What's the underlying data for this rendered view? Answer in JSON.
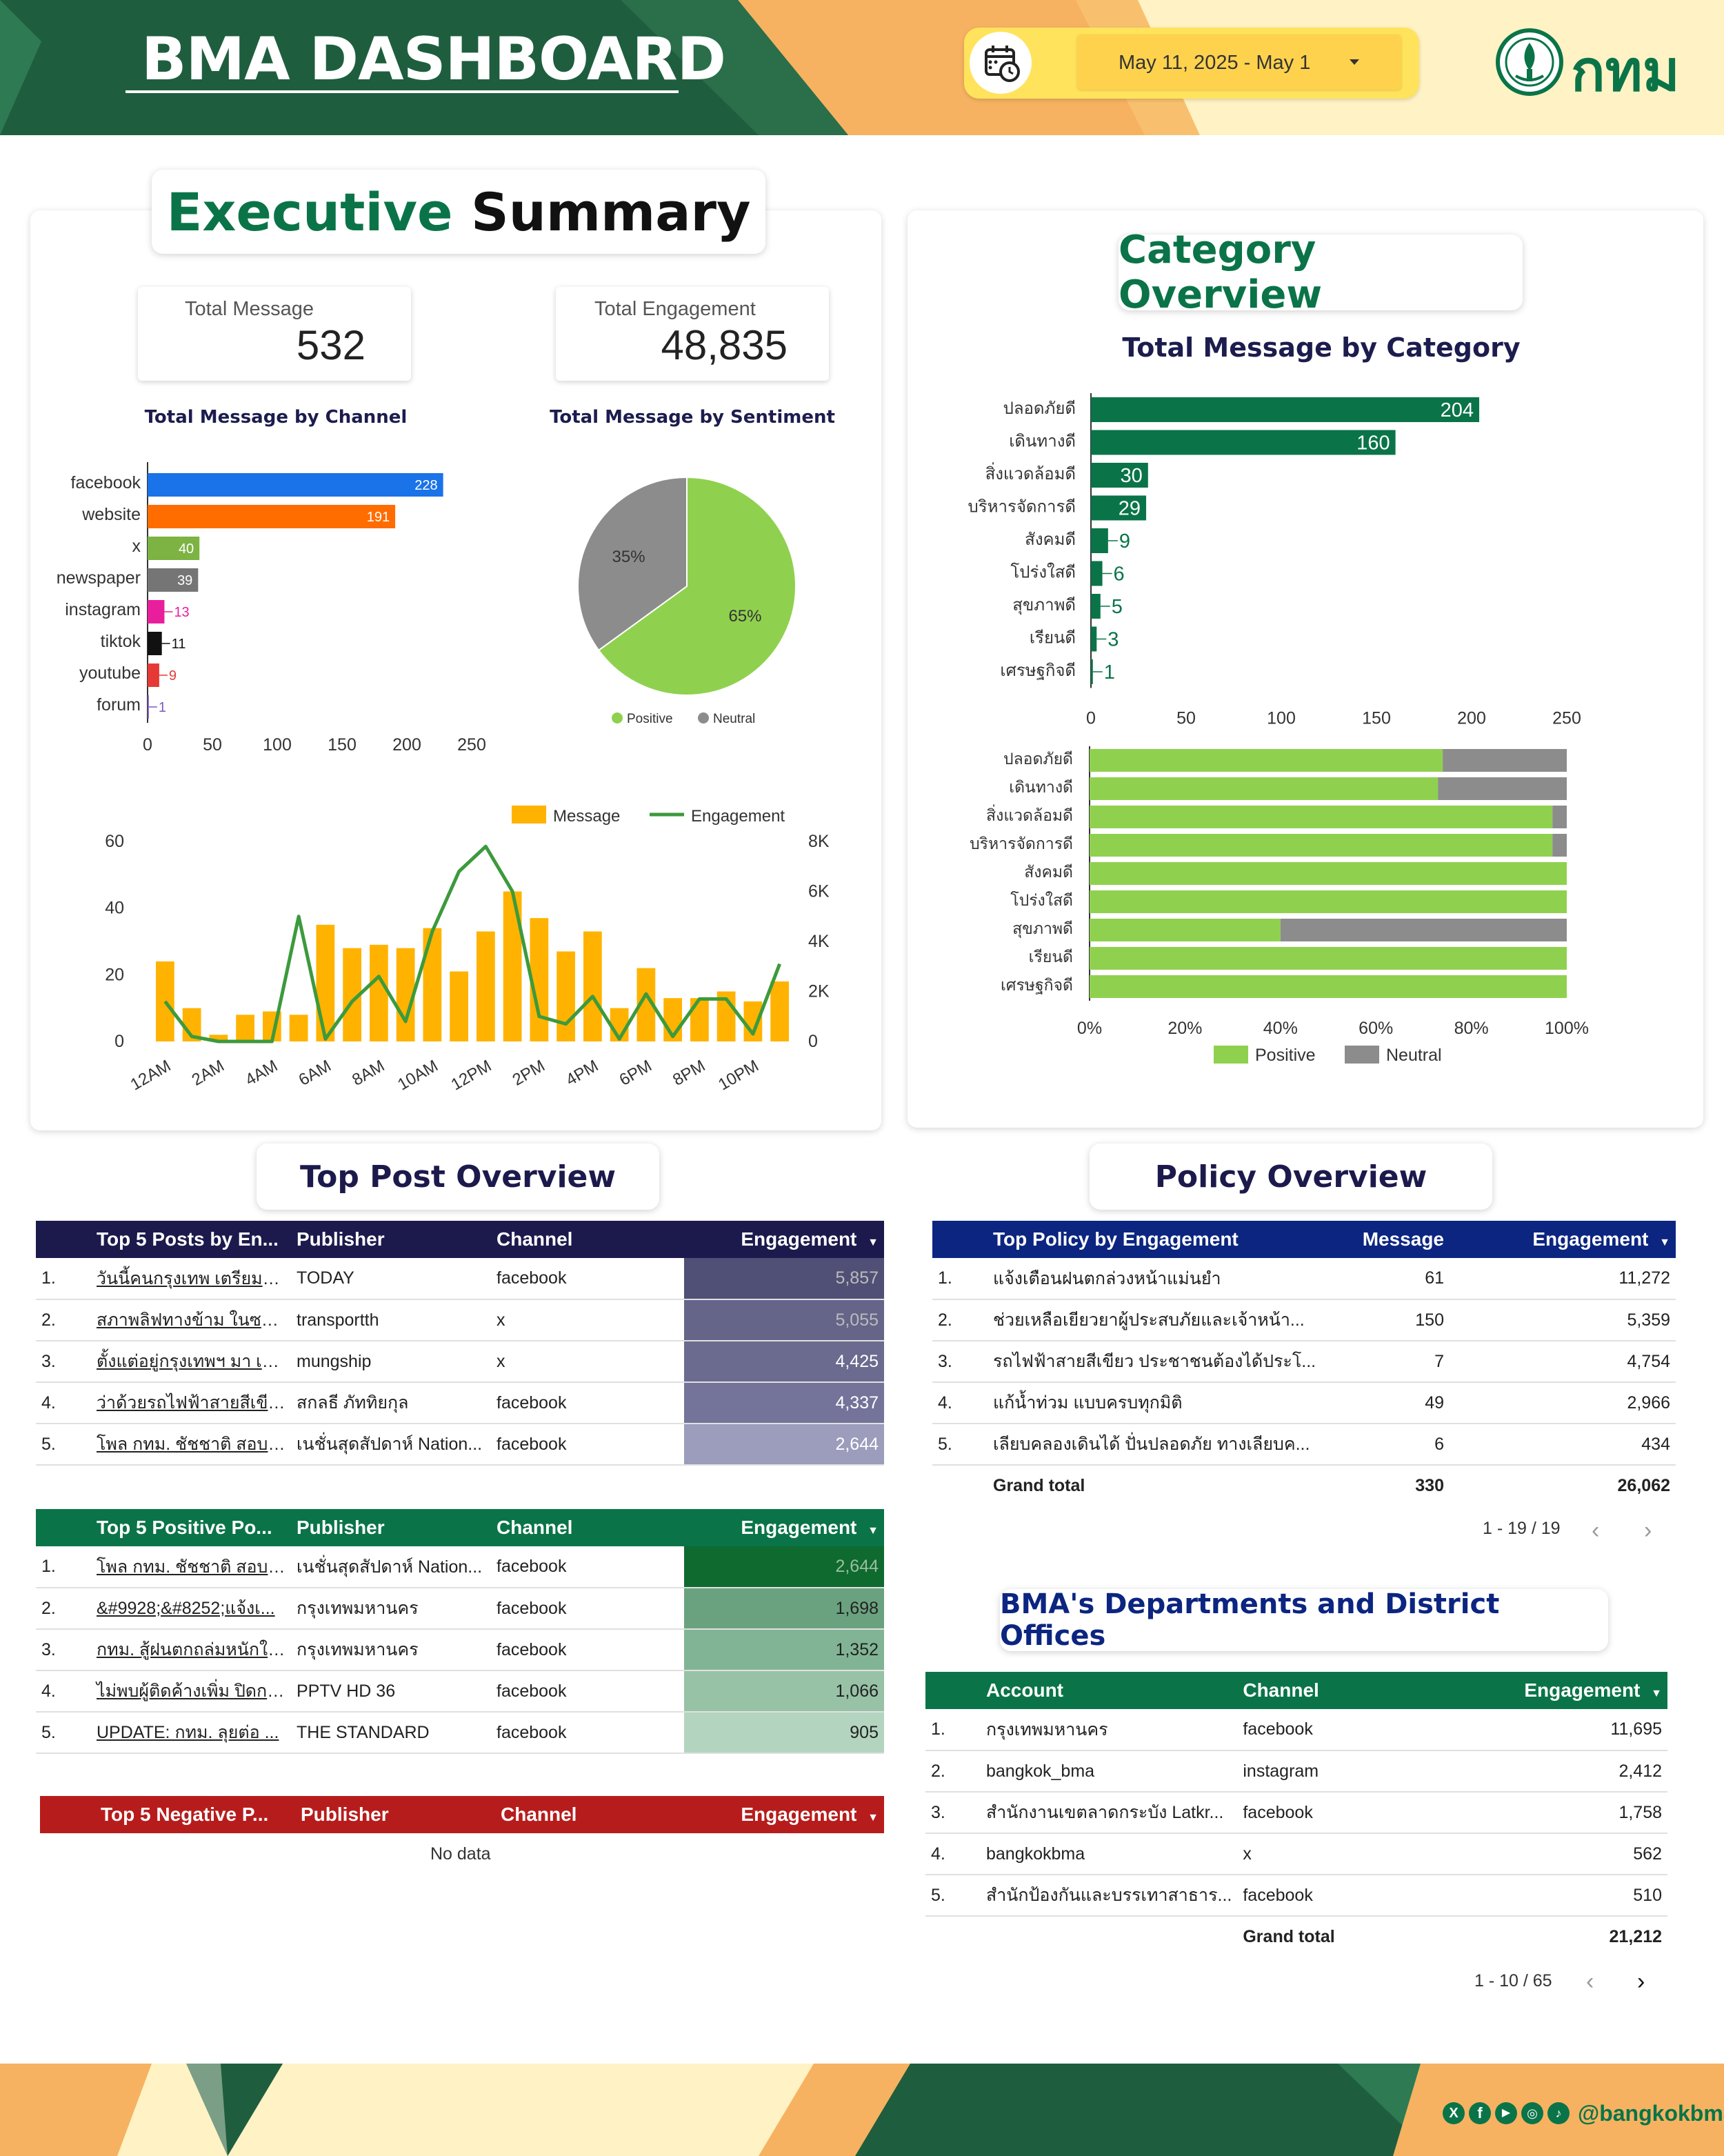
{
  "header": {
    "title": "BMA DASHBOARD",
    "date_range": "May 11, 2025 - May 1",
    "logo_text": "กทม",
    "calendar_icon": "calendar-clock-icon",
    "dropdown_icon": "caret-down-icon"
  },
  "executive": {
    "title_green": "Executive",
    "title_black": "Summary",
    "kpi_message_label": "Total Message",
    "kpi_message_value": "532",
    "kpi_engagement_label": "Total Engagement",
    "kpi_engagement_value": "48,835",
    "channel_chart_title": "Total Message by Channel",
    "sentiment_chart_title": "Total Message by Sentiment"
  },
  "category": {
    "title": "Category Overview",
    "chart_title": "Total Message by Category"
  },
  "top_post": {
    "title": "Top Post Overview",
    "engagement_table": {
      "headers": [
        "Top 5 Posts by En...",
        "Publisher",
        "Channel",
        "Engagement"
      ],
      "rows": [
        {
          "idx": "1.",
          "post": "วันนี้คนกรุงเทพ เตรียมตัว...",
          "publisher": "TODAY",
          "channel": "facebook",
          "engagement": "5,857"
        },
        {
          "idx": "2.",
          "post": "สภาพลิฟทางข้าม ในซอย...",
          "publisher": "transportth",
          "channel": "x",
          "engagement": "5,055"
        },
        {
          "idx": "3.",
          "post": "ตั้งแต่อยู่กรุงเทพฯ มา เคส...",
          "publisher": "mungship",
          "channel": "x",
          "engagement": "4,425"
        },
        {
          "idx": "4.",
          "post": "ว่าด้วยรถไฟฟ้าสายสีเขียว ...",
          "publisher": "สกลธี ภัททิยกุล",
          "channel": "facebook",
          "engagement": "4,337"
        },
        {
          "idx": "5.",
          "post": "โพล กทม. ชัชชาติ สอบผ่า...",
          "publisher": "เนชั่นสุดสัปดาห์ Nation...",
          "channel": "facebook",
          "engagement": "2,644"
        }
      ]
    },
    "positive_table": {
      "headers": [
        "Top 5 Positive Po...",
        "Publisher",
        "Channel",
        "Engagement"
      ],
      "rows": [
        {
          "idx": "1.",
          "post": "โพล กทม. ชัชชาติ สอบผ่า...",
          "publisher": "เนชั่นสุดสัปดาห์ Nation...",
          "channel": "facebook",
          "engagement": "2,644"
        },
        {
          "idx": "2.",
          "post": "&#9928;&#8252;แจ้งเ...",
          "publisher": "กรุงเทพมหานคร",
          "channel": "facebook",
          "engagement": "1,698"
        },
        {
          "idx": "3.",
          "post": "กทม. สู้ฝนตกถล่มหนักใจ...",
          "publisher": "กรุงเทพมหานคร",
          "channel": "facebook",
          "engagement": "1,352"
        },
        {
          "idx": "4.",
          "post": "ไม่พบผู้ติดค้างเพิ่ม ปิดการ...",
          "publisher": "PPTV HD 36",
          "channel": "facebook",
          "engagement": "1,066"
        },
        {
          "idx": "5.",
          "post": "UPDATE: กทม. ลุยต่อ ...",
          "publisher": "THE STANDARD",
          "channel": "facebook",
          "engagement": "905"
        }
      ]
    },
    "negative_table": {
      "headers": [
        "Top 5 Negative P...",
        "Publisher",
        "Channel",
        "Engagement"
      ],
      "no_data": "No data"
    }
  },
  "policy": {
    "title": "Policy Overview",
    "headers": [
      "Top Policy by Engagement",
      "Message",
      "Engagement"
    ],
    "rows": [
      {
        "idx": "1.",
        "policy": "แจ้งเตือนฝนตกล่วงหน้าแม่นยำ",
        "message": "61",
        "engagement": "11,272"
      },
      {
        "idx": "2.",
        "policy": "ช่วยเหลือเยียวยาผู้ประสบภัยและเจ้าหน้า...",
        "message": "150",
        "engagement": "5,359"
      },
      {
        "idx": "3.",
        "policy": "รถไฟฟ้าสายสีเขียว ประชาชนต้องได้ประโ...",
        "message": "7",
        "engagement": "4,754"
      },
      {
        "idx": "4.",
        "policy": "แก้น้ำท่วม แบบครบทุกมิติ",
        "message": "49",
        "engagement": "2,966"
      },
      {
        "idx": "5.",
        "policy": "เลียบคลองเดินได้ ปั่นปลอดภัย ทางเลียบค...",
        "message": "6",
        "engagement": "434"
      }
    ],
    "grand_total_label": "Grand total",
    "grand_total_message": "330",
    "grand_total_engagement": "26,062",
    "pager": "1 - 19 / 19"
  },
  "departments": {
    "title": "BMA's Departments and District Offices",
    "headers": [
      "Account",
      "Channel",
      "Engagement"
    ],
    "rows": [
      {
        "idx": "1.",
        "account": "กรุงเทพมหานคร",
        "channel": "facebook",
        "engagement": "11,695"
      },
      {
        "idx": "2.",
        "account": "bangkok_bma",
        "channel": "instagram",
        "engagement": "2,412"
      },
      {
        "idx": "3.",
        "account": "สำนักงานเขตลาดกระบัง Latkr...",
        "channel": "facebook",
        "engagement": "1,758"
      },
      {
        "idx": "4.",
        "account": "bangkokbma",
        "channel": "x",
        "engagement": "562"
      },
      {
        "idx": "5.",
        "account": "สำนักป้องกันและบรรเทาสาธาร...",
        "channel": "facebook",
        "engagement": "510"
      }
    ],
    "grand_total_label": "Grand total",
    "grand_total_engagement": "21,212",
    "pager": "1 - 10 / 65"
  },
  "footer": {
    "handle": "@bangkokbma",
    "social_icons": [
      "x-icon",
      "facebook-icon",
      "youtube-icon",
      "instagram-icon",
      "tiktok-icon"
    ]
  },
  "colors": {
    "dark_green": "#1e5e3e",
    "teal_green": "#0a7448",
    "navy": "#1c1a4c",
    "blue_header": "#0b2580",
    "red_header": "#b71c1c",
    "positive": "#8fd14f",
    "neutral": "#8c8c8c",
    "bar_orange": "#ffb300",
    "line_green": "#3c9a3c"
  },
  "chart_data": [
    {
      "type": "bar",
      "title": "Total Message by Channel",
      "orientation": "horizontal",
      "categories": [
        "facebook",
        "website",
        "x",
        "newspaper",
        "instagram",
        "tiktok",
        "youtube",
        "forum"
      ],
      "values": [
        228,
        191,
        40,
        39,
        13,
        11,
        9,
        1
      ],
      "colors": [
        "#1a73e8",
        "#ff6d00",
        "#7cb342",
        "#757575",
        "#e91e9c",
        "#111111",
        "#e53935",
        "#7e57c2"
      ],
      "xticks": [
        "0",
        "50",
        "100",
        "150",
        "200",
        "250"
      ],
      "xlim": [
        0,
        250
      ]
    },
    {
      "type": "pie",
      "title": "Total Message by Sentiment",
      "labels": [
        "Positive",
        "Neutral"
      ],
      "values": [
        65,
        35
      ],
      "slice_labels": [
        "65%",
        "35%"
      ],
      "colors": [
        "#8fd14f",
        "#8c8c8c"
      ],
      "legend": "bottom"
    },
    {
      "type": "bar",
      "subtype": "combo-bar-line",
      "categories": [
        "12AM",
        "1AM",
        "2AM",
        "3AM",
        "4AM",
        "5AM",
        "6AM",
        "7AM",
        "8AM",
        "9AM",
        "10AM",
        "11AM",
        "12PM",
        "1PM",
        "2PM",
        "3PM",
        "4PM",
        "5PM",
        "6PM",
        "7PM",
        "8PM",
        "9PM",
        "10PM",
        "11PM"
      ],
      "xtick_labels": [
        "12AM",
        "2AM",
        "4AM",
        "6AM",
        "8AM",
        "10AM",
        "12PM",
        "2PM",
        "4PM",
        "6PM",
        "8PM",
        "10PM"
      ],
      "series": [
        {
          "name": "Message",
          "type": "bar",
          "axis": "left",
          "values": [
            24,
            10,
            2,
            8,
            9,
            8,
            35,
            28,
            29,
            28,
            34,
            21,
            33,
            45,
            37,
            27,
            33,
            10,
            22,
            13,
            13,
            15,
            12,
            18
          ]
        },
        {
          "name": "Engagement",
          "type": "line",
          "axis": "right",
          "values": [
            1600,
            200,
            0,
            0,
            0,
            5000,
            100,
            1600,
            2600,
            800,
            4400,
            6800,
            7800,
            6000,
            1000,
            700,
            1800,
            100,
            1900,
            200,
            1700,
            1700,
            300,
            3100
          ]
        }
      ],
      "yticks_left": [
        "0",
        "20",
        "40",
        "60"
      ],
      "ylim_left": [
        0,
        60
      ],
      "yticks_right": [
        "0",
        "2K",
        "4K",
        "6K",
        "8K"
      ],
      "ylim_right": [
        0,
        8000
      ],
      "legend": "top-right"
    },
    {
      "type": "bar",
      "title": "Total Message by Category",
      "orientation": "horizontal",
      "categories": [
        "ปลอดภัยดี",
        "เดินทางดี",
        "สิ่งแวดล้อมดี",
        "บริหารจัดการดี",
        "สังคมดี",
        "โปร่งใสดี",
        "สุขภาพดี",
        "เรียนดี",
        "เศรษฐกิจดี"
      ],
      "values": [
        204,
        160,
        30,
        29,
        9,
        6,
        5,
        3,
        1
      ],
      "xticks": [
        "0",
        "50",
        "100",
        "150",
        "200",
        "250"
      ],
      "xlim": [
        0,
        250
      ]
    },
    {
      "type": "bar",
      "subtype": "stacked-100-horizontal",
      "categories": [
        "ปลอดภัยดี",
        "เดินทางดี",
        "สิ่งแวดล้อมดี",
        "บริหารจัดการดี",
        "สังคมดี",
        "โปร่งใสดี",
        "สุขภาพดี",
        "เรียนดี",
        "เศรษฐกิจดี"
      ],
      "series": [
        {
          "name": "Positive",
          "values": [
            74,
            73,
            97,
            97,
            100,
            100,
            40,
            100,
            100
          ]
        },
        {
          "name": "Neutral",
          "values": [
            26,
            27,
            3,
            3,
            0,
            0,
            60,
            0,
            0
          ]
        }
      ],
      "xticks": [
        "0%",
        "20%",
        "40%",
        "60%",
        "80%",
        "100%"
      ],
      "xlim": [
        0,
        100
      ],
      "legend": "bottom"
    }
  ]
}
